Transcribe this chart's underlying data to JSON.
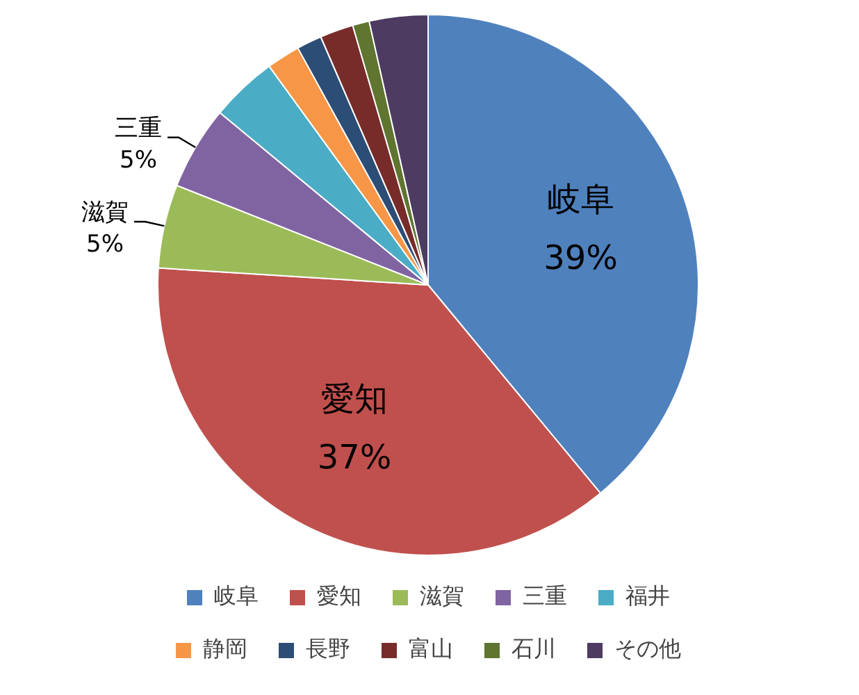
{
  "chart_data": {
    "type": "pie",
    "categories": [
      "岐阜",
      "愛知",
      "滋賀",
      "三重",
      "福井",
      "静岡",
      "長野",
      "富山",
      "石川",
      "その他"
    ],
    "values": [
      39,
      37,
      5,
      5,
      4,
      2,
      1.5,
      2,
      1,
      3.5
    ],
    "value_labels": [
      "39%",
      "37%",
      "5%",
      "5%",
      null,
      null,
      null,
      null,
      null,
      null
    ],
    "colors": [
      "#4f81bd",
      "#c0504d",
      "#9bbb59",
      "#8064a2",
      "#4bacc6",
      "#f79646",
      "#2c4d75",
      "#772c2a",
      "#5f7530",
      "#4d3b62"
    ],
    "legend": "bottom"
  }
}
